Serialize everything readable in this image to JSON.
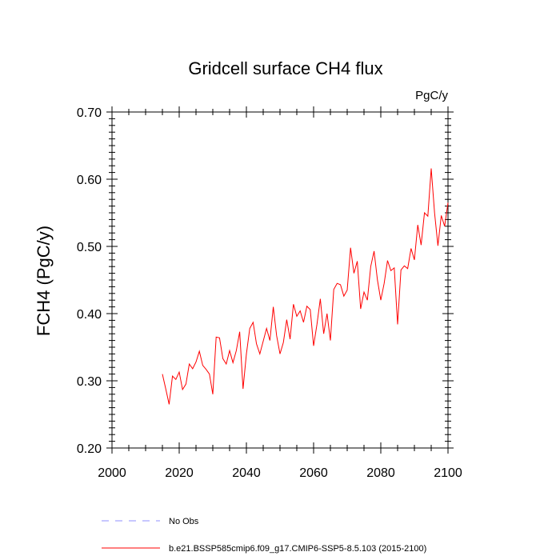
{
  "chart_data": {
    "type": "line",
    "title": "Gridcell surface CH4 flux",
    "units": "PgC/y",
    "ylabel": "FCH4  (PgC/y)",
    "xlabel": "",
    "xlim": [
      2000,
      2100
    ],
    "ylim": [
      0.2,
      0.7
    ],
    "xticks": [
      2000,
      2020,
      2040,
      2060,
      2080,
      2100
    ],
    "xtick_labels": [
      "2000",
      "2020",
      "2040",
      "2060",
      "2080",
      "2100"
    ],
    "yticks": [
      0.2,
      0.3,
      0.4,
      0.5,
      0.6,
      0.7
    ],
    "ytick_labels": [
      "0.20",
      "0.30",
      "0.40",
      "0.50",
      "0.60",
      "0.70"
    ],
    "series": [
      {
        "name": "b.e21.BSSP585cmip6.f09_g17.CMIP6-SSP5-8.5.103 (2015-2100)",
        "color": "#ff0000",
        "style": "solid",
        "x": [
          2015,
          2016,
          2017,
          2018,
          2019,
          2020,
          2021,
          2022,
          2023,
          2024,
          2025,
          2026,
          2027,
          2028,
          2029,
          2030,
          2031,
          2032,
          2033,
          2034,
          2035,
          2036,
          2037,
          2038,
          2039,
          2040,
          2041,
          2042,
          2043,
          2044,
          2045,
          2046,
          2047,
          2048,
          2049,
          2050,
          2051,
          2052,
          2053,
          2054,
          2055,
          2056,
          2057,
          2058,
          2059,
          2060,
          2061,
          2062,
          2063,
          2064,
          2065,
          2066,
          2067,
          2068,
          2069,
          2070,
          2071,
          2072,
          2073,
          2074,
          2075,
          2076,
          2077,
          2078,
          2079,
          2080,
          2081,
          2082,
          2083,
          2084,
          2085,
          2086,
          2087,
          2088,
          2089,
          2090,
          2091,
          2092,
          2093,
          2094,
          2095,
          2096,
          2097,
          2098,
          2099,
          2100
        ],
        "values": [
          0.31,
          0.288,
          0.265,
          0.307,
          0.302,
          0.313,
          0.287,
          0.295,
          0.325,
          0.318,
          0.328,
          0.344,
          0.323,
          0.317,
          0.31,
          0.28,
          0.365,
          0.364,
          0.333,
          0.325,
          0.345,
          0.327,
          0.345,
          0.373,
          0.288,
          0.34,
          0.378,
          0.387,
          0.355,
          0.34,
          0.359,
          0.378,
          0.36,
          0.41,
          0.367,
          0.34,
          0.357,
          0.391,
          0.362,
          0.414,
          0.396,
          0.404,
          0.387,
          0.411,
          0.406,
          0.352,
          0.384,
          0.422,
          0.37,
          0.4,
          0.36,
          0.436,
          0.445,
          0.443,
          0.426,
          0.435,
          0.498,
          0.46,
          0.478,
          0.407,
          0.432,
          0.42,
          0.47,
          0.493,
          0.45,
          0.42,
          0.445,
          0.479,
          0.464,
          0.468,
          0.384,
          0.465,
          0.471,
          0.467,
          0.497,
          0.48,
          0.532,
          0.502,
          0.55,
          0.545,
          0.616,
          0.55,
          0.501,
          0.546,
          0.53,
          0.565
        ]
      },
      {
        "name": "No Obs",
        "color": "#8f8fff",
        "style": "dashed",
        "x": [],
        "values": []
      }
    ],
    "legend": [
      {
        "label": "No Obs",
        "color": "#8f8fff",
        "style": "dashed"
      },
      {
        "label": "b.e21.BSSP585cmip6.f09_g17.CMIP6-SSP5-8.5.103 (2015-2100)",
        "color": "#ff0000",
        "style": "solid"
      }
    ],
    "legend_position": "bottom"
  }
}
